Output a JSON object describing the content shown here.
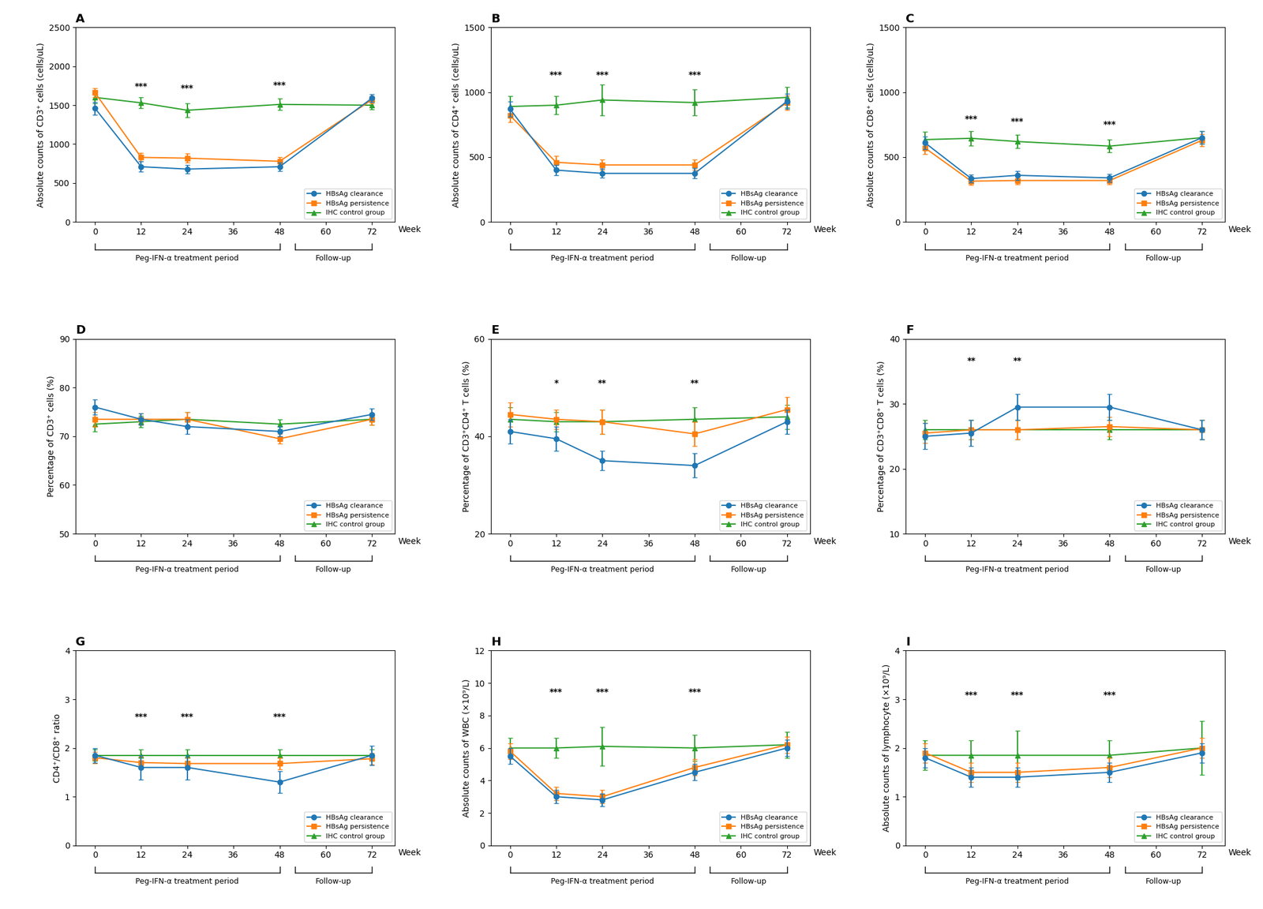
{
  "chart_data": [
    {
      "type": "line",
      "title": "A",
      "xlabel": "Week",
      "ylabel": "Absolute counts of CD3⁺ cells (cells/uL)",
      "x": [
        0,
        12,
        24,
        48,
        72
      ],
      "xlim": [
        -5,
        78
      ],
      "xticks": [
        0,
        12,
        24,
        36,
        48,
        60,
        72
      ],
      "ylim": [
        0,
        2500
      ],
      "yticks": [
        0,
        500,
        1000,
        1500,
        2000,
        2500
      ],
      "legend": "lower right",
      "series": [
        {
          "name": "HBsAg clearance",
          "marker": "circle",
          "values": [
            1460,
            710,
            680,
            710,
            1590
          ],
          "errors": [
            80,
            65,
            55,
            55,
            50
          ]
        },
        {
          "name": "HBsAg persistence",
          "marker": "square",
          "values": [
            1660,
            830,
            820,
            780,
            1570
          ],
          "errors": [
            60,
            55,
            60,
            55,
            45
          ]
        },
        {
          "name": "IHC control group",
          "marker": "triangle",
          "values": [
            1600,
            1530,
            1435,
            1510,
            1500
          ],
          "errors": [
            80,
            70,
            90,
            75,
            55
          ]
        }
      ],
      "annotations": [
        {
          "text": "***",
          "x": 12,
          "y": 1690
        },
        {
          "text": "***",
          "x": 24,
          "y": 1660
        },
        {
          "text": "***",
          "x": 48,
          "y": 1700
        }
      ],
      "periods": [
        {
          "label": "Peg-IFN-α treatment period",
          "start": 0,
          "end": 48
        },
        {
          "label": "Follow-up",
          "start": 52,
          "end": 72
        }
      ]
    },
    {
      "type": "line",
      "title": "B",
      "xlabel": "Week",
      "ylabel": "Absolute counts of CD4⁺ cells (cells/uL)",
      "x": [
        0,
        12,
        24,
        48,
        72
      ],
      "xlim": [
        -5,
        78
      ],
      "xticks": [
        0,
        12,
        24,
        36,
        48,
        60,
        72
      ],
      "ylim": [
        0,
        1500
      ],
      "yticks": [
        0,
        500,
        1000,
        1500
      ],
      "legend": "lower right",
      "series": [
        {
          "name": "HBsAg clearance",
          "marker": "circle",
          "values": [
            870,
            400,
            375,
            375,
            930
          ],
          "errors": [
            60,
            40,
            35,
            40,
            60
          ]
        },
        {
          "name": "HBsAg persistence",
          "marker": "square",
          "values": [
            820,
            460,
            440,
            440,
            920
          ],
          "errors": [
            50,
            50,
            40,
            40,
            55
          ]
        },
        {
          "name": "IHC control group",
          "marker": "triangle",
          "values": [
            890,
            900,
            940,
            920,
            960
          ],
          "errors": [
            80,
            70,
            120,
            100,
            80
          ]
        }
      ],
      "annotations": [
        {
          "text": "***",
          "x": 12,
          "y": 1100
        },
        {
          "text": "***",
          "x": 24,
          "y": 1100
        },
        {
          "text": "***",
          "x": 48,
          "y": 1100
        }
      ],
      "periods": [
        {
          "label": "Peg-IFN-α treatment period",
          "start": 0,
          "end": 48
        },
        {
          "label": "Follow-up",
          "start": 52,
          "end": 72
        }
      ]
    },
    {
      "type": "line",
      "title": "C",
      "xlabel": "Week",
      "ylabel": "Absolute counts of CD8⁺ cells (cells/uL)",
      "x": [
        0,
        12,
        24,
        48,
        72
      ],
      "xlim": [
        -5,
        78
      ],
      "xticks": [
        0,
        12,
        24,
        36,
        48,
        60,
        72
      ],
      "ylim": [
        0,
        1500
      ],
      "yticks": [
        0,
        500,
        1000,
        1500
      ],
      "legend": "lower right",
      "series": [
        {
          "name": "HBsAg clearance",
          "marker": "circle",
          "values": [
            610,
            335,
            360,
            340,
            650
          ],
          "errors": [
            50,
            30,
            35,
            30,
            50
          ]
        },
        {
          "name": "HBsAg persistence",
          "marker": "square",
          "values": [
            570,
            315,
            320,
            320,
            630
          ],
          "errors": [
            45,
            30,
            30,
            30,
            45
          ]
        },
        {
          "name": "IHC control group",
          "marker": "triangle",
          "values": [
            635,
            645,
            620,
            585,
            650
          ],
          "errors": [
            60,
            55,
            50,
            50,
            50
          ]
        }
      ],
      "annotations": [
        {
          "text": "***",
          "x": 12,
          "y": 760
        },
        {
          "text": "***",
          "x": 24,
          "y": 740
        },
        {
          "text": "***",
          "x": 48,
          "y": 720
        }
      ],
      "periods": [
        {
          "label": "Peg-IFN-α treatment period",
          "start": 0,
          "end": 48
        },
        {
          "label": "Follow-up",
          "start": 52,
          "end": 72
        }
      ]
    },
    {
      "type": "line",
      "title": "D",
      "xlabel": "Week",
      "ylabel": "Percentage of CD3⁺ cells (%)",
      "x": [
        0,
        12,
        24,
        48,
        72
      ],
      "xlim": [
        -5,
        78
      ],
      "xticks": [
        0,
        12,
        24,
        36,
        48,
        60,
        72
      ],
      "ylim": [
        50,
        90
      ],
      "yticks": [
        50,
        60,
        70,
        80,
        90
      ],
      "legend": "lower right",
      "series": [
        {
          "name": "HBsAg clearance",
          "marker": "circle",
          "values": [
            76.0,
            73.5,
            72.0,
            71.0,
            74.5
          ],
          "errors": [
            1.5,
            1.2,
            1.5,
            1.0,
            1.2
          ]
        },
        {
          "name": "HBsAg persistence",
          "marker": "square",
          "values": [
            73.5,
            73.5,
            73.5,
            69.5,
            73.5
          ],
          "errors": [
            1.5,
            1.2,
            1.5,
            1.0,
            1.2
          ]
        },
        {
          "name": "IHC control group",
          "marker": "triangle",
          "values": [
            72.5,
            73.0,
            73.5,
            72.5,
            73.5
          ],
          "errors": [
            1.5,
            1.2,
            1.5,
            1.0,
            1.2
          ]
        }
      ],
      "annotations": [],
      "periods": [
        {
          "label": "Peg-IFN-α treatment period",
          "start": 0,
          "end": 48
        },
        {
          "label": "Follow-up",
          "start": 52,
          "end": 72
        }
      ]
    },
    {
      "type": "line",
      "title": "E",
      "xlabel": "Week",
      "ylabel": "Percentage of CD3⁺CD4⁺ T cells (%)",
      "x": [
        0,
        12,
        24,
        48,
        72
      ],
      "xlim": [
        -5,
        78
      ],
      "xticks": [
        0,
        12,
        24,
        36,
        48,
        60,
        72
      ],
      "ylim": [
        20,
        60
      ],
      "yticks": [
        20,
        40,
        60
      ],
      "legend": "lower right",
      "series": [
        {
          "name": "HBsAg clearance",
          "marker": "circle",
          "values": [
            41.0,
            39.5,
            35.0,
            34.0,
            43.0
          ],
          "errors": [
            2.5,
            2.5,
            2.0,
            2.5,
            2.5
          ]
        },
        {
          "name": "HBsAg persistence",
          "marker": "square",
          "values": [
            44.5,
            43.5,
            43.0,
            40.5,
            45.5
          ],
          "errors": [
            2.5,
            2.0,
            2.5,
            2.5,
            2.5
          ]
        },
        {
          "name": "IHC control group",
          "marker": "triangle",
          "values": [
            43.5,
            43.0,
            43.0,
            43.5,
            44.0
          ],
          "errors": [
            2.5,
            2.0,
            2.5,
            2.5,
            2.5
          ]
        }
      ],
      "annotations": [
        {
          "text": "*",
          "x": 12,
          "y": 50
        },
        {
          "text": "**",
          "x": 24,
          "y": 50
        },
        {
          "text": "**",
          "x": 48,
          "y": 50
        }
      ],
      "periods": [
        {
          "label": "Peg-IFN-α treatment period",
          "start": 0,
          "end": 48
        },
        {
          "label": "Follow-up",
          "start": 52,
          "end": 72
        }
      ]
    },
    {
      "type": "line",
      "title": "F",
      "xlabel": "Week",
      "ylabel": "Percentage of CD3⁺CD8⁺ T cells (%)",
      "x": [
        0,
        12,
        24,
        48,
        72
      ],
      "xlim": [
        -5,
        78
      ],
      "xticks": [
        0,
        12,
        24,
        36,
        48,
        60,
        72
      ],
      "ylim": [
        10,
        40
      ],
      "yticks": [
        10,
        20,
        30,
        40
      ],
      "legend": "lower right",
      "series": [
        {
          "name": "HBsAg clearance",
          "marker": "circle",
          "values": [
            25.0,
            25.5,
            29.5,
            29.5,
            26.0
          ],
          "errors": [
            2.0,
            2.0,
            2.0,
            2.0,
            1.5
          ]
        },
        {
          "name": "HBsAg persistence",
          "marker": "square",
          "values": [
            25.5,
            26.0,
            26.0,
            26.5,
            26.0
          ],
          "errors": [
            1.5,
            1.5,
            1.5,
            1.5,
            1.5
          ]
        },
        {
          "name": "IHC control group",
          "marker": "triangle",
          "values": [
            26.0,
            26.0,
            26.0,
            26.0,
            26.0
          ],
          "errors": [
            1.5,
            1.5,
            1.5,
            1.5,
            1.5
          ]
        }
      ],
      "annotations": [
        {
          "text": "**",
          "x": 12,
          "y": 36
        },
        {
          "text": "**",
          "x": 24,
          "y": 36
        }
      ],
      "periods": [
        {
          "label": "Peg-IFN-α treatment period",
          "start": 0,
          "end": 48
        },
        {
          "label": "Follow-up",
          "start": 52,
          "end": 72
        }
      ]
    },
    {
      "type": "line",
      "title": "G",
      "xlabel": "Week",
      "ylabel": "CD4⁺/CD8⁺ ratio",
      "x": [
        0,
        12,
        24,
        48,
        72
      ],
      "xlim": [
        -5,
        78
      ],
      "xticks": [
        0,
        12,
        24,
        36,
        48,
        60,
        72
      ],
      "ylim": [
        0,
        4
      ],
      "yticks": [
        0,
        1,
        2,
        3,
        4
      ],
      "legend": "lower right",
      "series": [
        {
          "name": "HBsAg clearance",
          "marker": "circle",
          "values": [
            1.85,
            1.6,
            1.6,
            1.3,
            1.85
          ],
          "errors": [
            0.15,
            0.25,
            0.25,
            0.22,
            0.2
          ]
        },
        {
          "name": "HBsAg persistence",
          "marker": "square",
          "values": [
            1.8,
            1.7,
            1.68,
            1.68,
            1.78
          ],
          "errors": [
            0.12,
            0.12,
            0.12,
            0.12,
            0.12
          ]
        },
        {
          "name": "IHC control group",
          "marker": "triangle",
          "values": [
            1.85,
            1.85,
            1.85,
            1.85,
            1.85
          ],
          "errors": [
            0.12,
            0.12,
            0.12,
            0.12,
            0.12
          ]
        }
      ],
      "annotations": [
        {
          "text": "***",
          "x": 12,
          "y": 2.55
        },
        {
          "text": "***",
          "x": 24,
          "y": 2.55
        },
        {
          "text": "***",
          "x": 48,
          "y": 2.55
        }
      ],
      "periods": [
        {
          "label": "Peg-IFN-α treatment period",
          "start": 0,
          "end": 48
        },
        {
          "label": "Follow-up",
          "start": 52,
          "end": 72
        }
      ]
    },
    {
      "type": "line",
      "title": "H",
      "xlabel": "Week",
      "ylabel": "Absolute counts of WBC (×10⁹/L)",
      "x": [
        0,
        12,
        24,
        48,
        72
      ],
      "xlim": [
        -5,
        78
      ],
      "xticks": [
        0,
        12,
        24,
        36,
        48,
        60,
        72
      ],
      "ylim": [
        0,
        12
      ],
      "yticks": [
        0,
        2,
        4,
        6,
        8,
        10,
        12
      ],
      "legend": "lower right",
      "series": [
        {
          "name": "HBsAg clearance",
          "marker": "circle",
          "values": [
            5.5,
            3.0,
            2.8,
            4.5,
            6.0
          ],
          "errors": [
            0.5,
            0.4,
            0.4,
            0.5,
            0.5
          ]
        },
        {
          "name": "HBsAg persistence",
          "marker": "square",
          "values": [
            5.8,
            3.2,
            3.0,
            4.8,
            6.2
          ],
          "errors": [
            0.5,
            0.4,
            0.4,
            0.5,
            0.5
          ]
        },
        {
          "name": "IHC control group",
          "marker": "triangle",
          "values": [
            6.0,
            6.0,
            6.1,
            6.0,
            6.2
          ],
          "errors": [
            0.6,
            0.6,
            1.2,
            0.8,
            0.8
          ]
        }
      ],
      "annotations": [
        {
          "text": "***",
          "x": 12,
          "y": 9.2
        },
        {
          "text": "***",
          "x": 24,
          "y": 9.2
        },
        {
          "text": "***",
          "x": 48,
          "y": 9.2
        }
      ],
      "periods": [
        {
          "label": "Peg-IFN-α treatment period",
          "start": 0,
          "end": 48
        },
        {
          "label": "Follow-up",
          "start": 52,
          "end": 72
        }
      ]
    },
    {
      "type": "line",
      "title": "I",
      "xlabel": "Week",
      "ylabel": "Absolute counts of lymphocyte (×10⁹/L)",
      "x": [
        0,
        12,
        24,
        48,
        72
      ],
      "xlim": [
        -5,
        78
      ],
      "xticks": [
        0,
        12,
        24,
        36,
        48,
        60,
        72
      ],
      "ylim": [
        0,
        4
      ],
      "yticks": [
        0,
        1,
        2,
        3,
        4
      ],
      "legend": "lower right",
      "series": [
        {
          "name": "HBsAg clearance",
          "marker": "circle",
          "values": [
            1.8,
            1.4,
            1.4,
            1.5,
            1.9
          ],
          "errors": [
            0.2,
            0.2,
            0.2,
            0.2,
            0.2
          ]
        },
        {
          "name": "HBsAg persistence",
          "marker": "square",
          "values": [
            1.9,
            1.5,
            1.5,
            1.6,
            2.0
          ],
          "errors": [
            0.2,
            0.2,
            0.2,
            0.2,
            0.2
          ]
        },
        {
          "name": "IHC control group",
          "marker": "triangle",
          "values": [
            1.85,
            1.85,
            1.85,
            1.85,
            2.0
          ],
          "errors": [
            0.3,
            0.3,
            0.5,
            0.3,
            0.55
          ]
        }
      ],
      "annotations": [
        {
          "text": "***",
          "x": 12,
          "y": 3.0
        },
        {
          "text": "***",
          "x": 24,
          "y": 3.0
        },
        {
          "text": "***",
          "x": 48,
          "y": 3.0
        }
      ],
      "periods": [
        {
          "label": "Peg-IFN-α treatment period",
          "start": 0,
          "end": 48
        },
        {
          "label": "Follow-up",
          "start": 52,
          "end": 72
        }
      ]
    }
  ]
}
